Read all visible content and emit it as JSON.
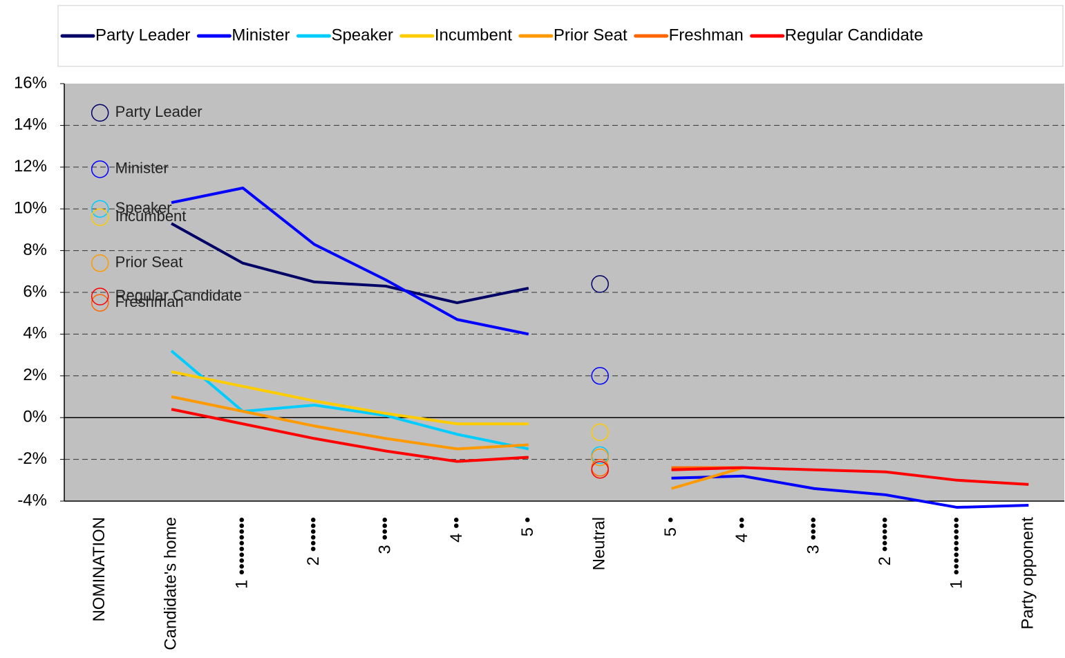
{
  "chart_data": {
    "type": "line",
    "categories": [
      "NOMINATION",
      "Candidate's home",
      "1 ••••••••••",
      "2 ••••••",
      "3 ••••",
      "4 ••",
      "5 •",
      "Neutral",
      "5 •",
      "4 ••",
      "3 ••••",
      "2 ••••••",
      "1 ••••••••••",
      "Party opponent"
    ],
    "series": [
      {
        "name": "Party Leader",
        "color": "#000066",
        "values": [
          14.6,
          9.3,
          7.4,
          6.5,
          6.3,
          5.5,
          6.2,
          6.4,
          null,
          null,
          null,
          null,
          null,
          null
        ]
      },
      {
        "name": "Minister",
        "color": "#0000ff",
        "values": [
          11.9,
          10.3,
          11.0,
          8.3,
          6.6,
          4.7,
          4.0,
          2.0,
          -2.9,
          -2.8,
          -3.4,
          -3.7,
          -4.3,
          -4.2
        ]
      },
      {
        "name": "Speaker",
        "color": "#00ccff",
        "values": [
          10.0,
          3.2,
          0.3,
          0.6,
          0.1,
          -0.8,
          -1.5,
          -1.8,
          null,
          null,
          null,
          null,
          null,
          null
        ]
      },
      {
        "name": "Incumbent",
        "color": "#ffcc00",
        "values": [
          9.6,
          2.2,
          1.5,
          0.8,
          0.2,
          -0.3,
          -0.3,
          -0.7,
          null,
          null,
          null,
          null,
          null,
          null
        ]
      },
      {
        "name": "Prior Seat",
        "color": "#ff9900",
        "values": [
          7.4,
          1.0,
          0.3,
          -0.4,
          -1.0,
          -1.5,
          -1.3,
          -1.9,
          -3.4,
          -2.4,
          null,
          null,
          null,
          null
        ]
      },
      {
        "name": "Freshman",
        "color": "#ff6600",
        "values": [
          5.5,
          null,
          null,
          null,
          null,
          null,
          null,
          -2.4,
          -2.4,
          -2.4,
          null,
          null,
          null,
          null
        ]
      },
      {
        "name": "Regular Candidate",
        "color": "#ff0000",
        "values": [
          5.8,
          0.4,
          -0.3,
          -1.0,
          -1.6,
          -2.1,
          -1.9,
          -2.5,
          -2.5,
          -2.4,
          -2.5,
          -2.6,
          -3.0,
          -3.2
        ]
      }
    ],
    "ylim": [
      -4,
      16
    ],
    "yticks": [
      {
        "value": -4,
        "label": "-4%"
      },
      {
        "value": -2,
        "label": "-2%"
      },
      {
        "value": 0,
        "label": "0%"
      },
      {
        "value": 2,
        "label": "2%"
      },
      {
        "value": 4,
        "label": "4%"
      },
      {
        "value": 6,
        "label": "6%"
      },
      {
        "value": 8,
        "label": "8%"
      },
      {
        "value": 10,
        "label": "10%"
      },
      {
        "value": 12,
        "label": "12%"
      },
      {
        "value": 14,
        "label": "14%"
      },
      {
        "value": 16,
        "label": "16%"
      }
    ],
    "grid": true,
    "legend": "top"
  }
}
